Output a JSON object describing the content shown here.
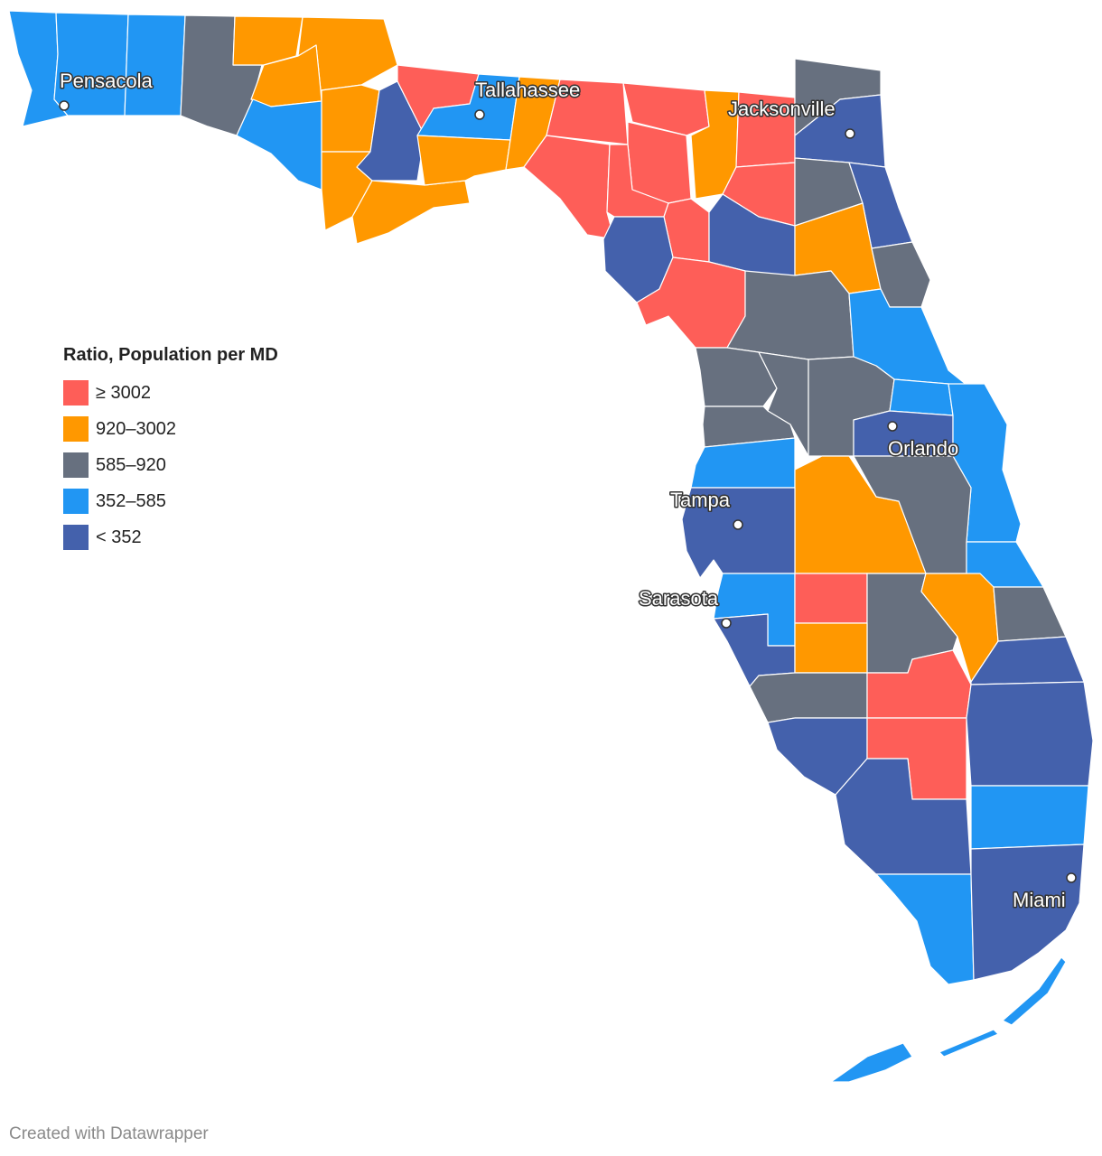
{
  "legend": {
    "title": "Ratio, Population per MD",
    "items": [
      {
        "label": "≥ 3002",
        "color": "#fe5e58"
      },
      {
        "label": "920–3002",
        "color": "#ff9800"
      },
      {
        "label": "585–920",
        "color": "#67707f"
      },
      {
        "label": "352–585",
        "color": "#2196f3"
      },
      {
        "label": "< 352",
        "color": "#4461ac"
      }
    ]
  },
  "cities": [
    {
      "name": "Pensacola"
    },
    {
      "name": "Tallahassee"
    },
    {
      "name": "Jacksonville"
    },
    {
      "name": "Orlando"
    },
    {
      "name": "Tampa"
    },
    {
      "name": "Sarasota"
    },
    {
      "name": "Miami"
    }
  ],
  "colors": {
    "red": "#fe5e58",
    "orange": "#ff9800",
    "gray": "#67707f",
    "lightblue": "#2196f3",
    "darkblue": "#4461ac"
  },
  "credit": "Created with Datawrapper"
}
